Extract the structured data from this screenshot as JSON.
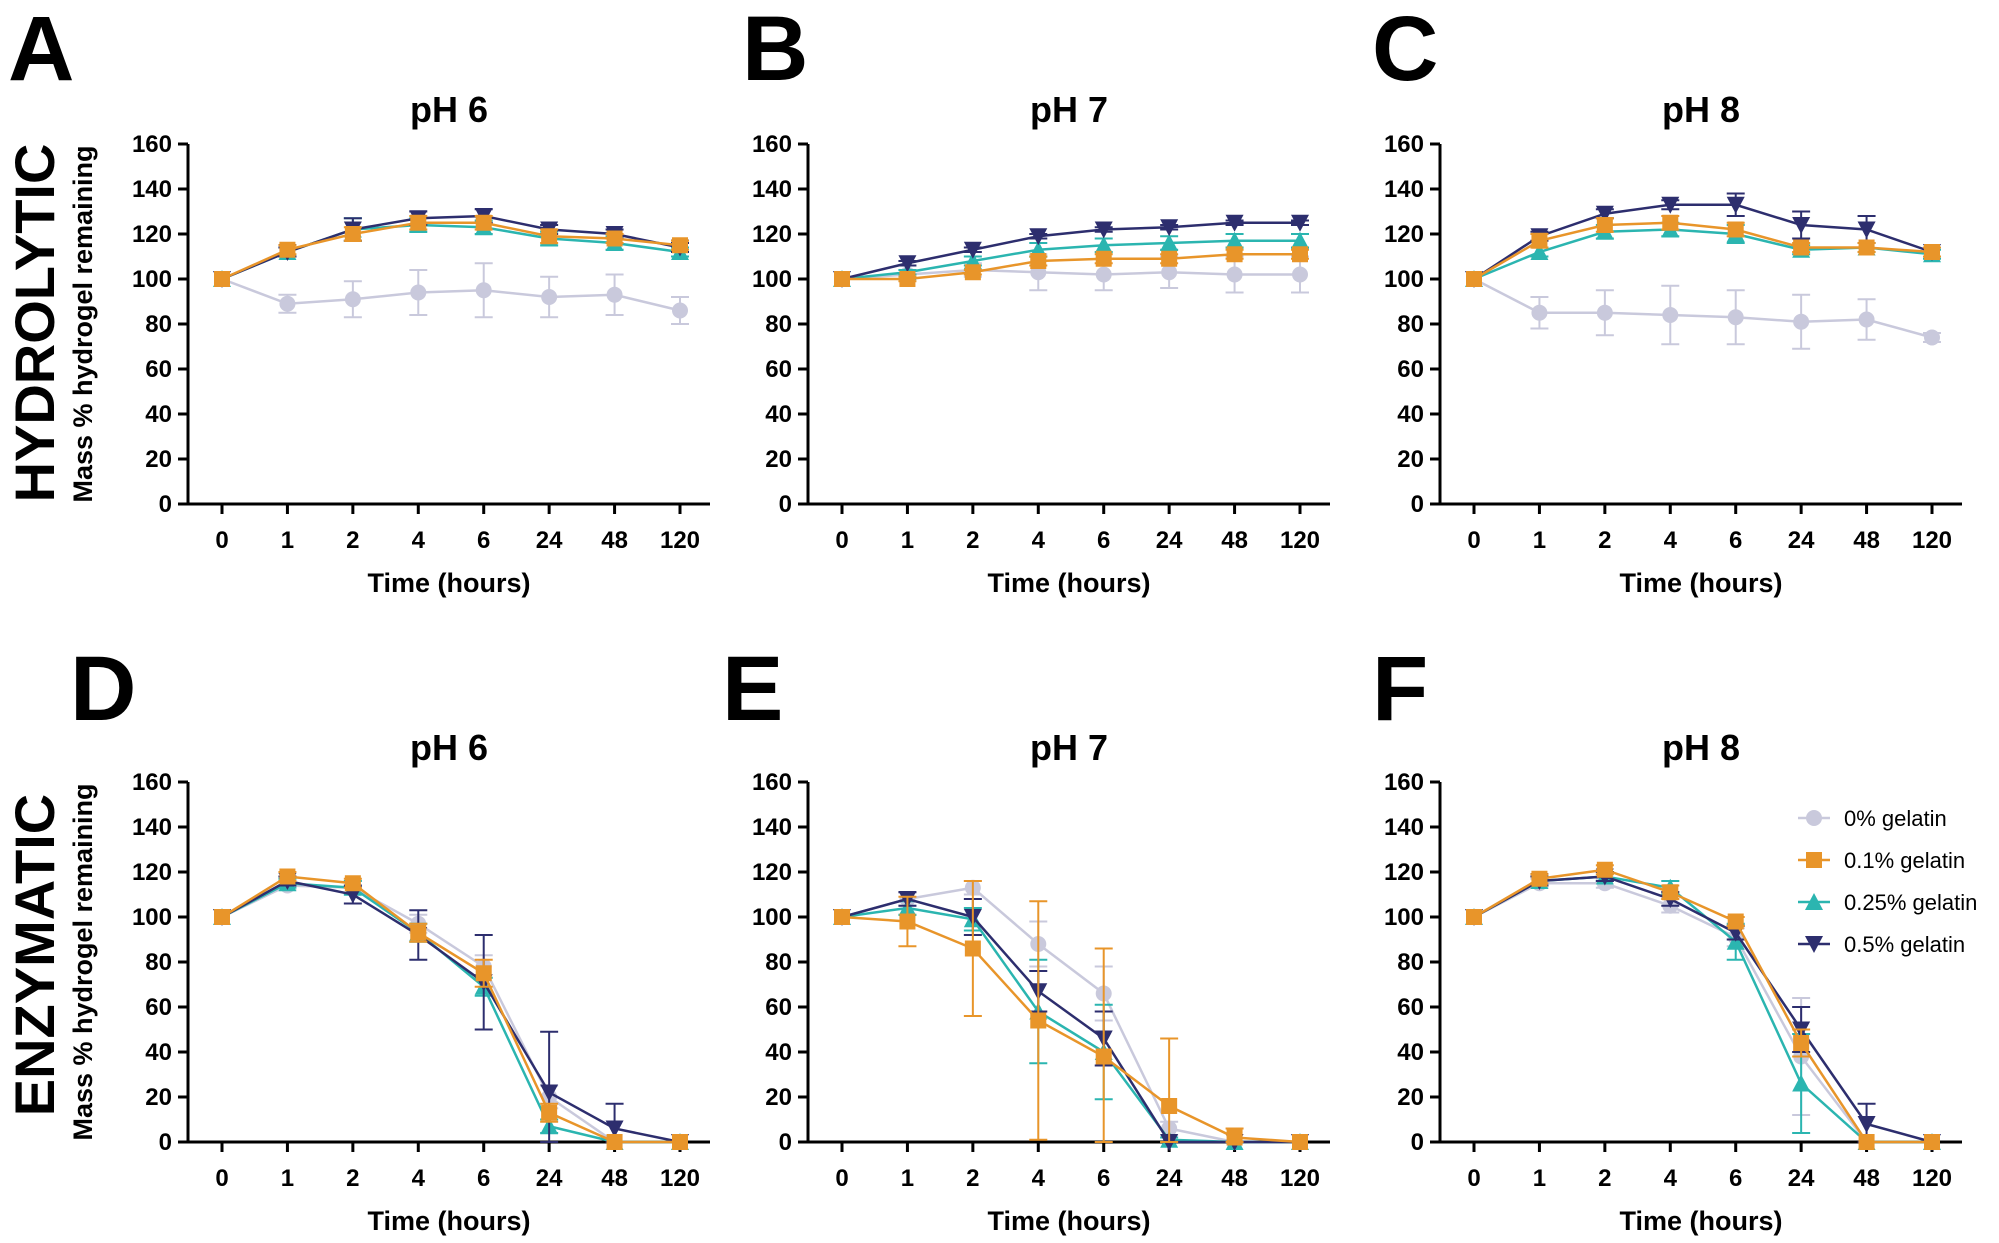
{
  "colors": {
    "0% gelatin": "#c9c9dc",
    "0.1% gelatin": "#e8952a",
    "0.25% gelatin": "#2bb5b0",
    "0.5% gelatin": "#2d2e6e"
  },
  "markers": {
    "0% gelatin": "circle",
    "0.1% gelatin": "square",
    "0.25% gelatin": "triangle-up",
    "0.5% gelatin": "triangle-down"
  },
  "row_labels": [
    "HYDROLYTIC",
    "ENZYMATIC"
  ],
  "legend": {
    "placement": "right, inside panel F",
    "entries": [
      "0% gelatin",
      "0.1% gelatin",
      "0.25% gelatin",
      "0.5% gelatin"
    ]
  },
  "chart_data": [
    {
      "type": "line",
      "letter": "A",
      "title": "pH 6",
      "xlabel": "Time (hours)",
      "ylabel": "Mass % hydrogel remaining",
      "categories": [
        "0",
        "1",
        "2",
        "4",
        "6",
        "24",
        "48",
        "120"
      ],
      "ylim": [
        0,
        160
      ],
      "yticks": [
        "0",
        "20",
        "40",
        "60",
        "80",
        "100",
        "120",
        "140",
        "160"
      ],
      "grid": false,
      "series": [
        {
          "name": "0% gelatin",
          "values": [
            100,
            89,
            91,
            94,
            95,
            92,
            93,
            86
          ],
          "errors": [
            0,
            4,
            8,
            10,
            12,
            9,
            9,
            6
          ]
        },
        {
          "name": "0.25% gelatin",
          "values": [
            100,
            112,
            122,
            124,
            123,
            118,
            116,
            112
          ],
          "errors": [
            0,
            2,
            5,
            3,
            3,
            3,
            3,
            2
          ]
        },
        {
          "name": "0.5% gelatin",
          "values": [
            100,
            112,
            122,
            127,
            128,
            122,
            120,
            114
          ],
          "errors": [
            0,
            2,
            5,
            3,
            3,
            2,
            2,
            2
          ]
        },
        {
          "name": "0.1% gelatin",
          "values": [
            100,
            113,
            120,
            125,
            125,
            119,
            118,
            115
          ],
          "errors": [
            0,
            2,
            3,
            3,
            3,
            3,
            2,
            2
          ]
        }
      ]
    },
    {
      "type": "line",
      "letter": "B",
      "title": "pH 7",
      "xlabel": "Time (hours)",
      "ylabel": "",
      "categories": [
        "0",
        "1",
        "2",
        "4",
        "6",
        "24",
        "48",
        "120"
      ],
      "ylim": [
        0,
        160
      ],
      "yticks": [
        "0",
        "20",
        "40",
        "60",
        "80",
        "100",
        "120",
        "140",
        "160"
      ],
      "grid": false,
      "series": [
        {
          "name": "0% gelatin",
          "values": [
            100,
            102,
            104,
            103,
            102,
            103,
            102,
            102
          ],
          "errors": [
            0,
            2,
            3,
            8,
            7,
            7,
            8,
            8
          ]
        },
        {
          "name": "0.25% gelatin",
          "values": [
            100,
            103,
            108,
            113,
            115,
            116,
            117,
            117
          ],
          "errors": [
            0,
            1,
            2,
            3,
            3,
            3,
            3,
            3
          ]
        },
        {
          "name": "0.5% gelatin",
          "values": [
            100,
            107,
            113,
            119,
            122,
            123,
            125,
            125
          ],
          "errors": [
            0,
            1,
            1,
            1,
            1,
            1,
            1,
            1
          ]
        },
        {
          "name": "0.1% gelatin",
          "values": [
            100,
            100,
            103,
            108,
            109,
            109,
            111,
            111
          ],
          "errors": [
            0,
            1,
            1,
            2,
            2,
            2,
            2,
            2
          ]
        }
      ]
    },
    {
      "type": "line",
      "letter": "C",
      "title": "pH 8",
      "xlabel": "Time (hours)",
      "ylabel": "",
      "categories": [
        "0",
        "1",
        "2",
        "4",
        "6",
        "24",
        "48",
        "120"
      ],
      "ylim": [
        0,
        160
      ],
      "yticks": [
        "0",
        "20",
        "40",
        "60",
        "80",
        "100",
        "120",
        "140",
        "160"
      ],
      "grid": false,
      "series": [
        {
          "name": "0% gelatin",
          "values": [
            100,
            85,
            85,
            84,
            83,
            81,
            82,
            74
          ],
          "errors": [
            0,
            7,
            10,
            13,
            12,
            12,
            9,
            2
          ]
        },
        {
          "name": "0.25% gelatin",
          "values": [
            100,
            112,
            121,
            122,
            120,
            113,
            114,
            111
          ],
          "errors": [
            0,
            2,
            3,
            3,
            4,
            2,
            2,
            2
          ]
        },
        {
          "name": "0.5% gelatin",
          "values": [
            100,
            119,
            129,
            133,
            133,
            124,
            122,
            112
          ],
          "errors": [
            0,
            2,
            2,
            2,
            5,
            6,
            6,
            2
          ]
        },
        {
          "name": "0.1% gelatin",
          "values": [
            100,
            117,
            124,
            125,
            122,
            114,
            114,
            112
          ],
          "errors": [
            0,
            3,
            3,
            3,
            3,
            2,
            2,
            2
          ]
        }
      ]
    },
    {
      "type": "line",
      "letter": "D",
      "title": "pH 6",
      "xlabel": "Time (hours)",
      "ylabel": "Mass % hydrogel remaining",
      "categories": [
        "0",
        "1",
        "2",
        "4",
        "6",
        "24",
        "48",
        "120"
      ],
      "ylim": [
        0,
        160
      ],
      "yticks": [
        "0",
        "20",
        "40",
        "60",
        "80",
        "100",
        "120",
        "140",
        "160"
      ],
      "grid": false,
      "series": [
        {
          "name": "0% gelatin",
          "values": [
            100,
            114,
            113,
            97,
            78,
            20,
            0,
            0
          ],
          "errors": [
            0,
            2,
            3,
            4,
            5,
            5,
            0,
            0
          ]
        },
        {
          "name": "0.25% gelatin",
          "values": [
            100,
            115,
            113,
            93,
            69,
            7,
            0,
            0
          ],
          "errors": [
            0,
            2,
            3,
            4,
            4,
            3,
            0,
            0
          ]
        },
        {
          "name": "0.5% gelatin",
          "values": [
            100,
            116,
            110,
            92,
            71,
            22,
            6,
            0
          ],
          "errors": [
            0,
            2,
            4,
            11,
            21,
            27,
            11,
            0
          ]
        },
        {
          "name": "0.1% gelatin",
          "values": [
            100,
            118,
            115,
            93,
            75,
            13,
            0,
            0
          ],
          "errors": [
            0,
            2,
            2,
            4,
            6,
            4,
            0,
            0
          ]
        }
      ]
    },
    {
      "type": "line",
      "letter": "E",
      "title": "pH 7",
      "xlabel": "Time (hours)",
      "ylabel": "",
      "categories": [
        "0",
        "1",
        "2",
        "4",
        "6",
        "24",
        "48",
        "120"
      ],
      "ylim": [
        0,
        160
      ],
      "yticks": [
        "0",
        "20",
        "40",
        "60",
        "80",
        "100",
        "120",
        "140",
        "160"
      ],
      "grid": false,
      "series": [
        {
          "name": "0% gelatin",
          "values": [
            100,
            108,
            113,
            88,
            66,
            6,
            0,
            0
          ],
          "errors": [
            0,
            3,
            3,
            10,
            12,
            3,
            0,
            0
          ]
        },
        {
          "name": "0.25% gelatin",
          "values": [
            100,
            104,
            99,
            58,
            40,
            1,
            0,
            0
          ],
          "errors": [
            0,
            3,
            5,
            23,
            21,
            1,
            0,
            0
          ]
        },
        {
          "name": "0.5% gelatin",
          "values": [
            100,
            108,
            100,
            67,
            46,
            0,
            0,
            0
          ],
          "errors": [
            0,
            3,
            8,
            9,
            12,
            0,
            0,
            0
          ]
        },
        {
          "name": "0.1% gelatin",
          "values": [
            100,
            98,
            86,
            54,
            38,
            16,
            2,
            0
          ],
          "errors": [
            0,
            11,
            30,
            53,
            48,
            30,
            4,
            0
          ]
        }
      ]
    },
    {
      "type": "line",
      "letter": "F",
      "title": "pH 8",
      "xlabel": "Time (hours)",
      "ylabel": "",
      "categories": [
        "0",
        "1",
        "2",
        "4",
        "6",
        "24",
        "48",
        "120"
      ],
      "ylim": [
        0,
        160
      ],
      "yticks": [
        "0",
        "20",
        "40",
        "60",
        "80",
        "100",
        "120",
        "140",
        "160"
      ],
      "grid": false,
      "series": [
        {
          "name": "0% gelatin",
          "values": [
            100,
            115,
            115,
            105,
            91,
            38,
            0,
            0
          ],
          "errors": [
            0,
            2,
            2,
            3,
            4,
            26,
            0,
            0
          ]
        },
        {
          "name": "0.25% gelatin",
          "values": [
            100,
            116,
            118,
            113,
            89,
            26,
            0,
            0
          ],
          "errors": [
            0,
            2,
            2,
            3,
            8,
            22,
            0,
            0
          ]
        },
        {
          "name": "0.5% gelatin",
          "values": [
            100,
            116,
            118,
            108,
            93,
            50,
            8,
            0
          ],
          "errors": [
            0,
            2,
            2,
            3,
            3,
            10,
            9,
            0
          ]
        },
        {
          "name": "0.1% gelatin",
          "values": [
            100,
            117,
            121,
            111,
            98,
            44,
            0,
            0
          ],
          "errors": [
            0,
            2,
            2,
            3,
            2,
            6,
            0,
            0
          ]
        }
      ]
    }
  ]
}
